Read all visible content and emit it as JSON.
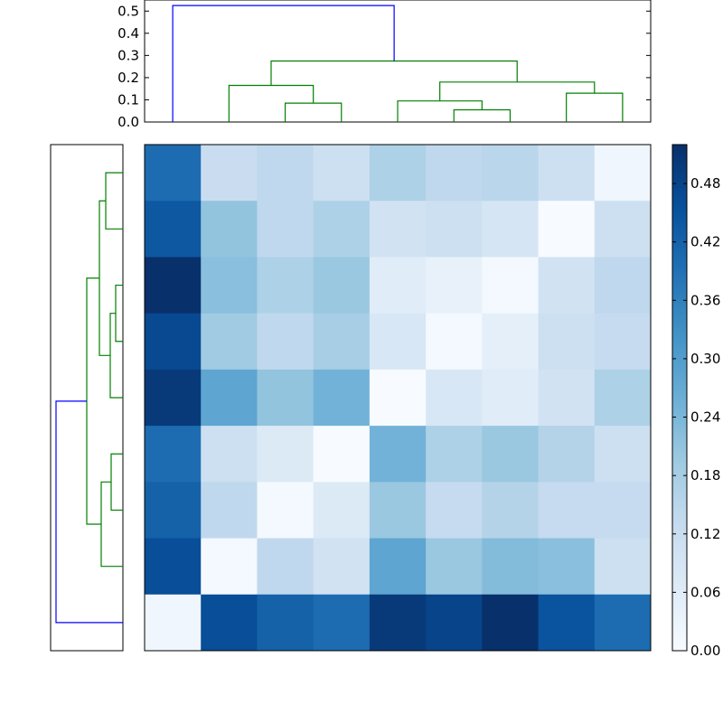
{
  "chart_data": [
    {
      "type": "dendrogram",
      "orientation": "top",
      "ylim": [
        0,
        0.55
      ],
      "yticks": [
        "0.0",
        "0.1",
        "0.2",
        "0.3",
        "0.4",
        "0.5"
      ],
      "colors": {
        "above": "#0000ff",
        "cluster": "#008000"
      },
      "links": [
        {
          "x": [
            5.5,
            6.5
          ],
          "left": 0,
          "right": 0,
          "h": 0.055,
          "color": "cluster"
        },
        {
          "x": [
            4.5,
            6.0
          ],
          "left": 0,
          "right": 0.055,
          "h": 0.095,
          "color": "cluster"
        },
        {
          "x": [
            2.5,
            3.5
          ],
          "left": 0,
          "right": 0,
          "h": 0.085,
          "color": "cluster"
        },
        {
          "x": [
            7.5,
            8.5
          ],
          "left": 0,
          "right": 0,
          "h": 0.13,
          "color": "cluster"
        },
        {
          "x": [
            1.5,
            3.0
          ],
          "left": 0,
          "right": 0.085,
          "h": 0.165,
          "color": "cluster"
        },
        {
          "x": [
            5.25,
            8.0
          ],
          "left": 0.095,
          "right": 0.13,
          "h": 0.18,
          "color": "cluster"
        },
        {
          "x": [
            2.25,
            6.625
          ],
          "left": 0.165,
          "right": 0.18,
          "h": 0.275,
          "color": "cluster"
        },
        {
          "x": [
            0.5,
            4.4375
          ],
          "left": 0,
          "right": 0.275,
          "h": 0.525,
          "color": "above"
        }
      ]
    },
    {
      "type": "dendrogram",
      "orientation": "left",
      "n": 9,
      "colors": {
        "above": "#0000ff",
        "cluster": "#008000"
      },
      "links": [
        {
          "y": [
            0.5,
            1.5
          ],
          "a": 0,
          "b": 0,
          "h": 0.095,
          "color": "cluster"
        },
        {
          "y": [
            2.5,
            3.5
          ],
          "a": 0,
          "b": 0,
          "h": 0.04,
          "color": "cluster"
        },
        {
          "y": [
            3.0,
            4.5
          ],
          "a": 0.04,
          "b": 0,
          "h": 0.07,
          "color": "cluster"
        },
        {
          "y": [
            5.5,
            6.5
          ],
          "a": 0,
          "b": 0,
          "h": 0.065,
          "color": "cluster"
        },
        {
          "y": [
            6.0,
            7.5
          ],
          "a": 0.065,
          "b": 0,
          "h": 0.12,
          "color": "cluster"
        },
        {
          "y": [
            1.0,
            3.75
          ],
          "a": 0.095,
          "b": 0.07,
          "h": 0.13,
          "color": "cluster"
        },
        {
          "y": [
            2.375,
            6.75
          ],
          "a": 0.13,
          "b": 0.12,
          "h": 0.2,
          "color": "cluster"
        },
        {
          "y": [
            4.5625,
            8.5
          ],
          "a": 0.2,
          "b": 0,
          "h": 0.37,
          "color": "above"
        }
      ],
      "hmax": 0.4
    },
    {
      "type": "heatmap",
      "rows": 9,
      "cols": 9,
      "vmin": 0,
      "vmax": 0.52,
      "values": [
        [
          0.4,
          0.12,
          0.14,
          0.11,
          0.17,
          0.14,
          0.15,
          0.11,
          0.02
        ],
        [
          0.44,
          0.21,
          0.14,
          0.17,
          0.1,
          0.11,
          0.09,
          0.0,
          0.11
        ],
        [
          0.52,
          0.22,
          0.17,
          0.2,
          0.06,
          0.04,
          0.01,
          0.1,
          0.14
        ],
        [
          0.47,
          0.19,
          0.14,
          0.18,
          0.08,
          0.01,
          0.05,
          0.11,
          0.13
        ],
        [
          0.5,
          0.28,
          0.21,
          0.25,
          0.0,
          0.08,
          0.06,
          0.1,
          0.17
        ],
        [
          0.4,
          0.11,
          0.07,
          0.0,
          0.25,
          0.17,
          0.2,
          0.16,
          0.11
        ],
        [
          0.42,
          0.14,
          0.01,
          0.07,
          0.2,
          0.13,
          0.16,
          0.13,
          0.13
        ],
        [
          0.46,
          0.01,
          0.14,
          0.1,
          0.28,
          0.2,
          0.23,
          0.22,
          0.11
        ],
        [
          0.02,
          0.46,
          0.42,
          0.4,
          0.5,
          0.48,
          0.52,
          0.45,
          0.4
        ]
      ]
    },
    {
      "type": "colorbar",
      "vmin": 0,
      "vmax": 0.52,
      "ticks": [
        "0.00",
        "0.06",
        "0.12",
        "0.18",
        "0.24",
        "0.30",
        "0.36",
        "0.42",
        "0.48"
      ],
      "cmap": [
        "#f7fbff",
        "#deebf7",
        "#c6dbef",
        "#9ecae1",
        "#6baed6",
        "#4292c6",
        "#2171b5",
        "#08519c",
        "#08306b"
      ]
    }
  ]
}
